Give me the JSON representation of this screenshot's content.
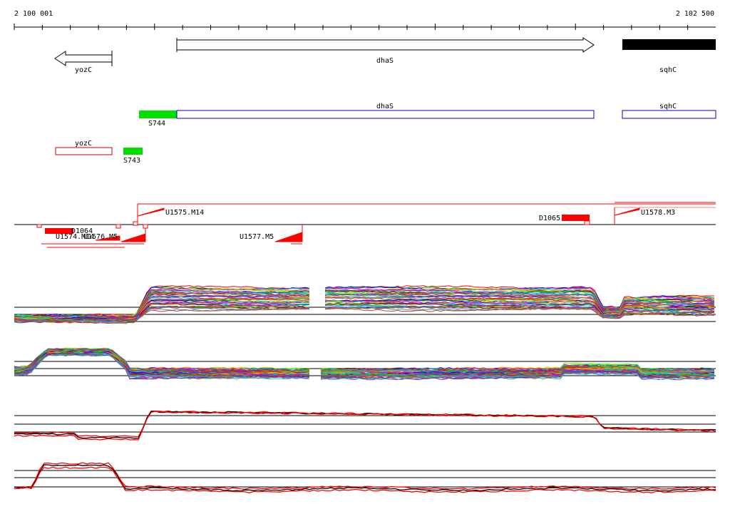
{
  "ruler": {
    "start_label": "2 100 001",
    "end_label": "2 102 500"
  },
  "genes_strand": [
    {
      "label": "yozC",
      "direction": "left",
      "style": "outline"
    },
    {
      "label": "dhaS",
      "direction": "right",
      "style": "outline"
    },
    {
      "label": "sqhC",
      "direction": "right",
      "style": "filled"
    }
  ],
  "transcripts": [
    {
      "label": "dhaS",
      "color": "#0000cc"
    },
    {
      "label": "sqhC",
      "color": "#0000cc"
    },
    {
      "label": "yozC",
      "color": "#cc0000"
    }
  ],
  "segments": [
    {
      "label": "S744",
      "color": "#00e000"
    },
    {
      "label": "S743",
      "color": "#00e000"
    }
  ],
  "upshifts": [
    {
      "label": "U1575.M14"
    },
    {
      "label": "U1578.M3"
    },
    {
      "label": "U1577.M5"
    },
    {
      "label": "U1574.M14"
    },
    {
      "label": "U1576.M5"
    }
  ],
  "downshifts": [
    {
      "label": "D1064"
    },
    {
      "label": "D1065"
    }
  ],
  "colors": {
    "accent_red": "#ff0000",
    "gene_blue": "#0000cc",
    "segment_green": "#00e000",
    "axis_black": "#000000"
  },
  "expression_panels": [
    {
      "name": "top-strand-tiling",
      "style": "multicolor"
    },
    {
      "name": "bottom-strand-tiling",
      "style": "multicolor"
    },
    {
      "name": "top-strand-summary",
      "style": "red-black"
    },
    {
      "name": "bottom-strand-summary",
      "style": "red-black"
    }
  ]
}
